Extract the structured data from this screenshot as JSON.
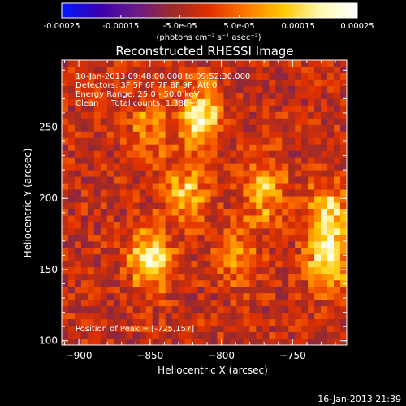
{
  "chart_data": {
    "type": "heatmap",
    "title": "Reconstructed RHESSI Image",
    "xlabel": "Heliocentric X (arcsec)",
    "ylabel": "Heliocentric Y (arcsec)",
    "xlim": [
      -912,
      -712
    ],
    "ylim": [
      97,
      297
    ],
    "xticks": [
      -900,
      -850,
      -800,
      -750
    ],
    "yticks": [
      100,
      150,
      200,
      250
    ],
    "colorbar": {
      "min": -0.00025,
      "max": 0.00025,
      "ticks": [
        "-0.00025",
        "-0.00015",
        "-5.0e-05",
        "5.0e-05",
        "0.00015",
        "0.00025"
      ],
      "unit_label": "(photons cm⁻² s⁻¹ asec⁻²)",
      "colors": [
        "#0018ff",
        "#3a00b0",
        "#6a1a8a",
        "#9c2a2a",
        "#e03000",
        "#ff7a00",
        "#ffc800",
        "#fff8b0",
        "#ffffff"
      ]
    },
    "annotations": [
      "10-Jan-2013 09:48:00.000 to 09:52:30.000",
      "Detectors: 3F 5F 6F 7F 8F 9F, Att 0",
      "Energy Range: 25.0 - 50.0 keV",
      "Clean     Total counts: 1.38E+04"
    ],
    "peak_label": "Position of Peak = [-725,157]",
    "peak": [
      -725,
      157
    ],
    "sources": [
      {
        "x": -815,
        "y": 258,
        "intensity": 0.00025
      },
      {
        "x": -850,
        "y": 158,
        "intensity": 0.00024
      },
      {
        "x": -825,
        "y": 205,
        "intensity": 0.00018
      },
      {
        "x": -770,
        "y": 205,
        "intensity": 0.00018
      },
      {
        "x": -725,
        "y": 157,
        "intensity": 0.00025
      },
      {
        "x": -725,
        "y": 190,
        "intensity": 0.0002
      },
      {
        "x": -790,
        "y": 160,
        "intensity": 0.00012
      },
      {
        "x": -850,
        "y": 250,
        "intensity": 0.00012
      }
    ]
  },
  "timestamp": "16-Jan-2013 21:39"
}
